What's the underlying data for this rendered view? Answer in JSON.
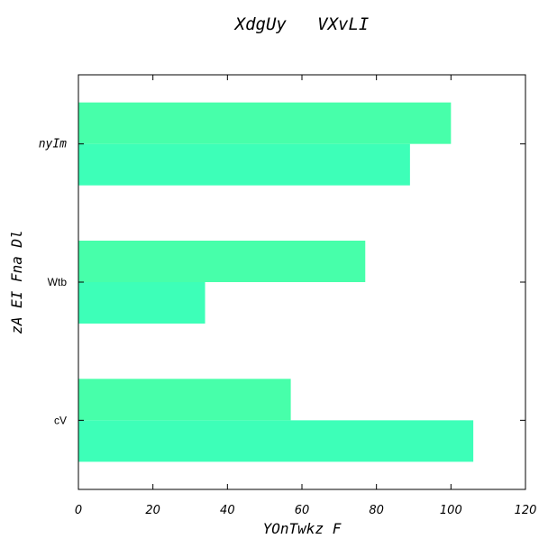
{
  "chart_data": {
    "type": "bar",
    "orientation": "horizontal",
    "title": "XdgUy   VXvLI",
    "xlabel": "YOnTwkz F",
    "ylabel": "zA EI Fna Dl",
    "categories": [
      "cV",
      "Wtb",
      "nyIm"
    ],
    "series": [
      {
        "values": [
          106,
          34,
          89
        ],
        "color": "#3dffb8"
      },
      {
        "values": [
          57,
          77,
          100
        ],
        "color": "#47ffaa"
      }
    ],
    "xlim": [
      0,
      120
    ],
    "xticks": [
      "0",
      "20",
      "40",
      "60",
      "80",
      "100",
      "120"
    ],
    "grid": false,
    "legend": "none"
  }
}
